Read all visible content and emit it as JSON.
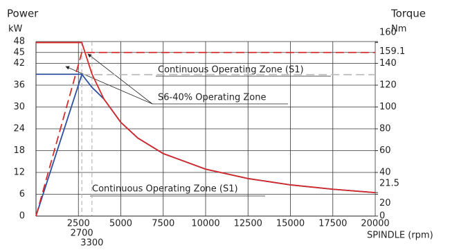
{
  "chart_data": {
    "type": "line",
    "y_label": "Power",
    "y_unit": "kW",
    "y2_label": "Torque",
    "y2_unit": "Nm",
    "x_label": "SPINDLE (rpm)",
    "xlim": [
      0,
      20000
    ],
    "xticks": [
      2500,
      2700,
      3300,
      5000,
      7500,
      10000,
      12500,
      15000,
      17500,
      20000
    ],
    "ylim": [
      0,
      48
    ],
    "yticks": [
      0,
      6,
      12,
      18,
      24,
      30,
      36,
      42,
      45,
      48
    ],
    "y2lim": [
      0,
      160
    ],
    "y2ticks": [
      0,
      20,
      21.5,
      40,
      60,
      80,
      100,
      120,
      140,
      159.1,
      160
    ],
    "grid": true,
    "series": [
      {
        "color": "#2b4fa0",
        "dash": false,
        "axis": "y",
        "x": [
          0,
          2700
        ],
        "values": [
          0,
          38.9
        ]
      },
      {
        "color": "#bbbbbb",
        "dash": true,
        "axis": "y",
        "x": [
          2700,
          20000
        ],
        "values": [
          38.9,
          38.9
        ]
      },
      {
        "color": "#d62a2a",
        "dash": true,
        "axis": "y",
        "x": [
          0,
          2700,
          3000,
          20000
        ],
        "values": [
          0,
          45,
          45,
          45
        ]
      },
      {
        "color": "#2b4fa0",
        "dash": false,
        "axis": "y2",
        "x": [
          0,
          2700,
          3300,
          4000,
          5000,
          6000,
          7500,
          10000,
          12500,
          15000,
          17500,
          20000
        ],
        "values": [
          130,
          130,
          118,
          107.4,
          85.9,
          71.6,
          57.3,
          43.0,
          34.4,
          28.6,
          24.6,
          21.5
        ]
      },
      {
        "color": "#d62a2a",
        "dash": false,
        "axis": "y2",
        "x": [
          0,
          2700,
          3300,
          4000,
          5000,
          6000,
          7500,
          10000,
          12500,
          15000,
          17500,
          20000
        ],
        "values": [
          159.1,
          159.1,
          130.2,
          107.4,
          85.9,
          71.6,
          57.3,
          43.0,
          34.4,
          28.6,
          24.6,
          21.5
        ]
      }
    ],
    "annotations": [
      "Continuous Operating Zone (S1)",
      "S6-40%  Operating Zone",
      "Continuous Operating Zone (S1)"
    ]
  }
}
